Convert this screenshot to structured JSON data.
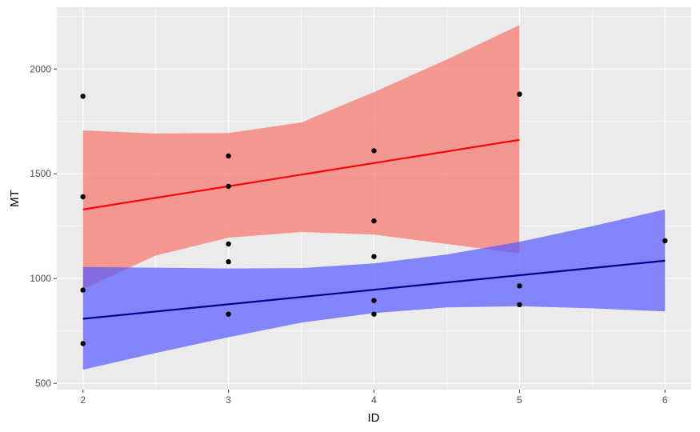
{
  "chart_data": {
    "type": "scatter",
    "xlabel": "ID",
    "ylabel": "MT",
    "xlim": [
      1.82,
      6.18
    ],
    "ylim": [
      470,
      2295
    ],
    "x_ticks": [
      2,
      3,
      4,
      5,
      6
    ],
    "x_tick_labels": [
      "2",
      "3",
      "4",
      "5",
      "6"
    ],
    "y_ticks": [
      500,
      1000,
      1500,
      2000
    ],
    "y_tick_labels": [
      "500",
      "1000",
      "1500",
      "2000"
    ],
    "grid": true,
    "panel_color": "#ebebeb",
    "grid_color": "#ffffff",
    "points": [
      {
        "x": 2,
        "y": 1870
      },
      {
        "x": 2,
        "y": 1390
      },
      {
        "x": 2,
        "y": 945
      },
      {
        "x": 2,
        "y": 690
      },
      {
        "x": 3,
        "y": 1585
      },
      {
        "x": 3,
        "y": 1440
      },
      {
        "x": 3,
        "y": 1165
      },
      {
        "x": 3,
        "y": 1080
      },
      {
        "x": 3,
        "y": 830
      },
      {
        "x": 4,
        "y": 1610
      },
      {
        "x": 4,
        "y": 1275
      },
      {
        "x": 4,
        "y": 1105
      },
      {
        "x": 4,
        "y": 895
      },
      {
        "x": 4,
        "y": 830
      },
      {
        "x": 5,
        "y": 1880
      },
      {
        "x": 5,
        "y": 965
      },
      {
        "x": 5,
        "y": 875
      },
      {
        "x": 6,
        "y": 1180
      }
    ],
    "point_color": "#000000",
    "series": [
      {
        "line_color": "#ff0000",
        "band_color": "#f8766d",
        "fit": [
          [
            2,
            1330
          ],
          [
            5,
            1662
          ]
        ],
        "upper": [
          [
            2,
            1707
          ],
          [
            2.5,
            1692
          ],
          [
            3,
            1695
          ],
          [
            3.5,
            1745
          ],
          [
            4,
            1890
          ],
          [
            4.5,
            2045
          ],
          [
            5,
            2210
          ]
        ],
        "lower": [
          [
            2,
            950
          ],
          [
            2.5,
            1110
          ],
          [
            3,
            1195
          ],
          [
            3.5,
            1222
          ],
          [
            4,
            1210
          ],
          [
            4.5,
            1165
          ],
          [
            5,
            1120
          ]
        ]
      },
      {
        "line_color": "#00008b",
        "band_color": "#5a5aff",
        "fit": [
          [
            2,
            808
          ],
          [
            6,
            1085
          ]
        ],
        "upper": [
          [
            2,
            1055
          ],
          [
            2.5,
            1052
          ],
          [
            3,
            1048
          ],
          [
            3.5,
            1050
          ],
          [
            4,
            1072
          ],
          [
            4.5,
            1115
          ],
          [
            5,
            1175
          ],
          [
            5.5,
            1250
          ],
          [
            6,
            1330
          ]
        ],
        "lower": [
          [
            2,
            565
          ],
          [
            2.5,
            645
          ],
          [
            3,
            720
          ],
          [
            3.5,
            790
          ],
          [
            4,
            835
          ],
          [
            4.5,
            862
          ],
          [
            5,
            868
          ],
          [
            5.5,
            858
          ],
          [
            6,
            843
          ]
        ]
      }
    ]
  }
}
